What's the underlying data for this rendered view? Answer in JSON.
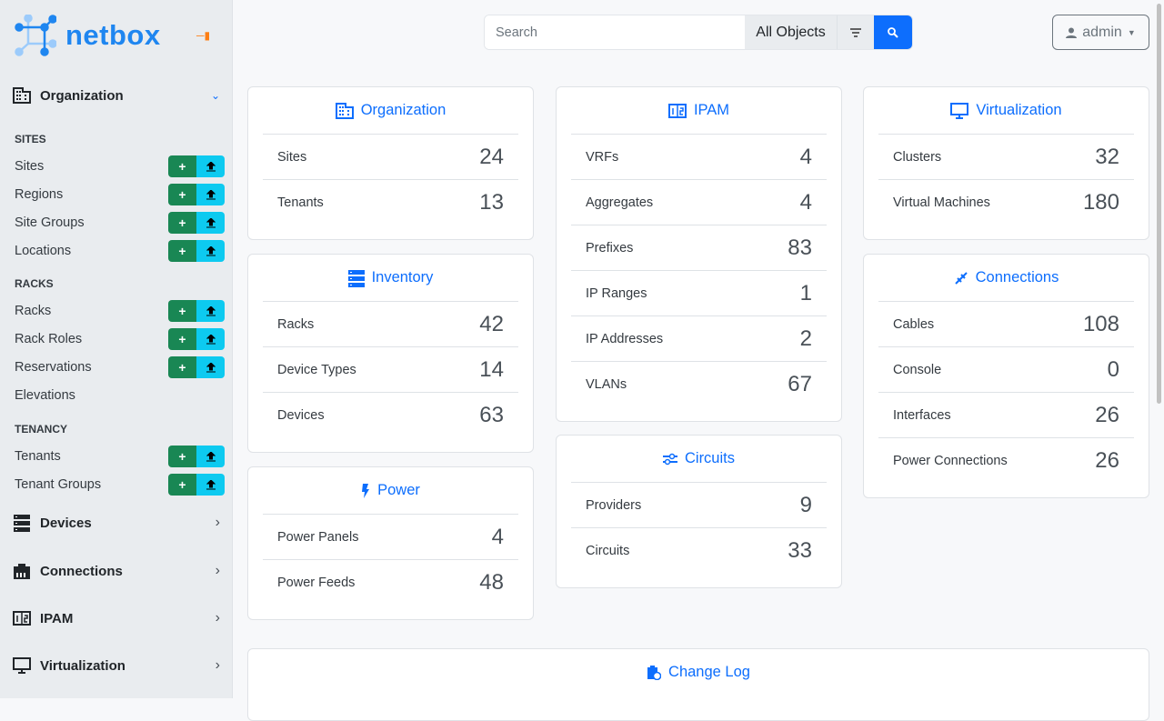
{
  "brand": {
    "name": "netbox",
    "accent": "#1f86f0"
  },
  "sidebar": {
    "sections": [
      {
        "label": "Organization",
        "icon": "domain-icon",
        "expanded": true
      },
      {
        "label": "Devices",
        "icon": "server-icon",
        "expanded": false
      },
      {
        "label": "Connections",
        "icon": "ethernet-icon",
        "expanded": false
      },
      {
        "label": "IPAM",
        "icon": "counter-icon",
        "expanded": false
      },
      {
        "label": "Virtualization",
        "icon": "monitor-icon",
        "expanded": false
      }
    ],
    "groups": [
      {
        "label": "SITES",
        "items": [
          {
            "label": "Sites",
            "buttons": true
          },
          {
            "label": "Regions",
            "buttons": true
          },
          {
            "label": "Site Groups",
            "buttons": true
          },
          {
            "label": "Locations",
            "buttons": true
          }
        ]
      },
      {
        "label": "RACKS",
        "items": [
          {
            "label": "Racks",
            "buttons": true
          },
          {
            "label": "Rack Roles",
            "buttons": true
          },
          {
            "label": "Reservations",
            "buttons": true
          },
          {
            "label": "Elevations",
            "buttons": false
          }
        ]
      },
      {
        "label": "TENANCY",
        "items": [
          {
            "label": "Tenants",
            "buttons": true
          },
          {
            "label": "Tenant Groups",
            "buttons": true
          }
        ]
      }
    ]
  },
  "search": {
    "placeholder": "Search",
    "scope": "All Objects"
  },
  "user": {
    "name": "admin"
  },
  "cards": [
    {
      "title": "Organization",
      "icon": "domain-icon",
      "rows": [
        [
          "Sites",
          "24"
        ],
        [
          "Tenants",
          "13"
        ]
      ]
    },
    {
      "title": "Inventory",
      "icon": "server-icon",
      "rows": [
        [
          "Racks",
          "42"
        ],
        [
          "Device Types",
          "14"
        ],
        [
          "Devices",
          "63"
        ]
      ]
    },
    {
      "title": "Power",
      "icon": "flash-icon",
      "rows": [
        [
          "Power Panels",
          "4"
        ],
        [
          "Power Feeds",
          "48"
        ]
      ]
    },
    {
      "title": "IPAM",
      "icon": "counter-icon",
      "rows": [
        [
          "VRFs",
          "4"
        ],
        [
          "Aggregates",
          "4"
        ],
        [
          "Prefixes",
          "83"
        ],
        [
          "IP Ranges",
          "1"
        ],
        [
          "IP Addresses",
          "2"
        ],
        [
          "VLANs",
          "67"
        ]
      ]
    },
    {
      "title": "Circuits",
      "icon": "transit-connection-icon",
      "rows": [
        [
          "Providers",
          "9"
        ],
        [
          "Circuits",
          "33"
        ]
      ]
    },
    {
      "title": "Virtualization",
      "icon": "monitor-icon",
      "rows": [
        [
          "Clusters",
          "32"
        ],
        [
          "Virtual Machines",
          "180"
        ]
      ]
    },
    {
      "title": "Connections",
      "icon": "cable-data-icon",
      "rows": [
        [
          "Cables",
          "108"
        ],
        [
          "Console",
          "0"
        ],
        [
          "Interfaces",
          "26"
        ],
        [
          "Power Connections",
          "26"
        ]
      ]
    },
    {
      "title": "Change Log",
      "icon": "clipboard-clock-icon",
      "rows": []
    }
  ]
}
